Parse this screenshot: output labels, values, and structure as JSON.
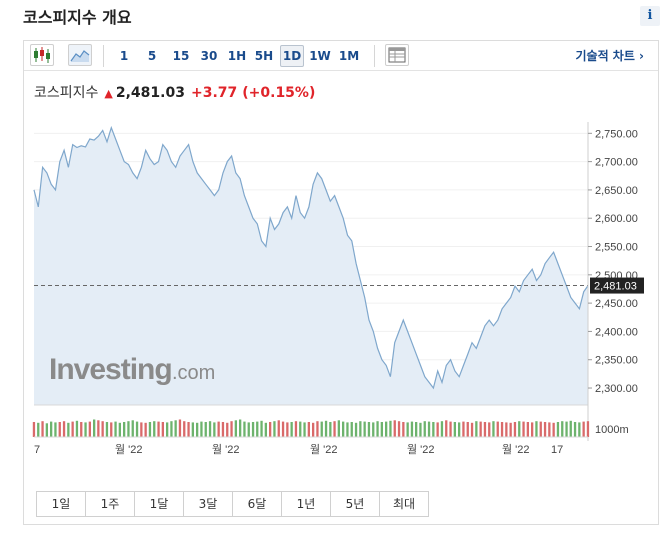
{
  "header": {
    "title": "코스피지수 개요",
    "info_label": "i"
  },
  "toolbar": {
    "icons": [
      "candlestick-chart-icon",
      "area-chart-icon",
      "table-view-icon"
    ],
    "intervals": [
      "1",
      "5",
      "15",
      "30",
      "1H",
      "5H",
      "1D",
      "1W",
      "1M"
    ],
    "active_interval": "1D",
    "technical_chart_label": "기술적 차트 ›"
  },
  "quote": {
    "name": "코스피지수",
    "price": "2,481.03",
    "change": "+3.77",
    "change_pct": "(+0.15%)",
    "up_color": "#e0242a"
  },
  "chart_data": {
    "type": "area",
    "title": "",
    "y_ticks": [
      2300,
      2350,
      2400,
      2450,
      2500,
      2550,
      2600,
      2650,
      2700,
      2750
    ],
    "ylim": [
      2270,
      2770
    ],
    "current_value": 2481.03,
    "current_label": "2,481.03",
    "volume_axis_label": "1000m",
    "x_tick_labels": [
      "7",
      "월 '22",
      "월 '22",
      "월 '22",
      "월 '22",
      "월 '22",
      "17"
    ],
    "series": [
      {
        "values": [
          2650,
          2620,
          2690,
          2680,
          2660,
          2650,
          2700,
          2720,
          2690,
          2730,
          2725,
          2728,
          2726,
          2740,
          2738,
          2745,
          2755,
          2735,
          2760,
          2740,
          2720,
          2700,
          2695,
          2680,
          2670,
          2690,
          2720,
          2705,
          2695,
          2700,
          2730,
          2720,
          2700,
          2690,
          2710,
          2720,
          2730,
          2700,
          2680,
          2670,
          2660,
          2650,
          2640,
          2650,
          2680,
          2700,
          2710,
          2680,
          2670,
          2640,
          2620,
          2600,
          2590,
          2560,
          2550,
          2600,
          2580,
          2590,
          2610,
          2620,
          2600,
          2640,
          2610,
          2600,
          2620,
          2660,
          2680,
          2670,
          2650,
          2630,
          2640,
          2620,
          2600,
          2570,
          2560,
          2520,
          2490,
          2460,
          2420,
          2400,
          2370,
          2350,
          2340,
          2320,
          2380,
          2400,
          2420,
          2400,
          2380,
          2360,
          2340,
          2320,
          2310,
          2300,
          2330,
          2310,
          2340,
          2350,
          2330,
          2320,
          2340,
          2360,
          2380,
          2370,
          2390,
          2410,
          2420,
          2410,
          2420,
          2440,
          2450,
          2460,
          2480,
          2470,
          2490,
          2500,
          2510,
          2490,
          2500,
          2520,
          2530,
          2540,
          2520,
          2500,
          2480,
          2460,
          2450,
          2440,
          2470,
          2481
        ]
      }
    ],
    "volume": [
      36,
      34,
      38,
      33,
      37,
      35,
      36,
      38,
      34,
      37,
      39,
      36,
      35,
      37,
      42,
      40,
      38,
      36,
      35,
      37,
      34,
      36,
      38,
      40,
      37,
      35,
      34,
      36,
      38,
      37,
      36,
      35,
      38,
      40,
      42,
      38,
      36,
      35,
      34,
      37,
      36,
      38,
      35,
      37,
      36,
      34,
      38,
      40,
      42,
      37,
      35,
      36,
      37,
      39,
      34,
      36,
      38,
      40,
      37,
      35,
      36,
      38,
      37,
      35,
      36,
      34,
      38,
      37,
      39,
      36,
      38,
      40,
      37,
      35,
      36,
      34,
      38,
      37,
      36,
      35,
      38,
      36,
      37,
      39,
      40,
      38,
      36,
      35,
      37,
      36,
      34,
      38,
      37,
      36,
      35,
      38,
      40,
      37,
      36,
      35,
      37,
      36,
      34,
      38,
      37,
      36,
      35,
      38,
      37,
      36,
      35,
      34,
      36,
      38,
      37,
      36,
      35,
      38,
      37,
      36,
      35,
      34,
      36,
      38,
      37,
      39,
      36,
      35,
      37,
      38
    ]
  },
  "ranges": [
    "1일",
    "1주",
    "1달",
    "3달",
    "6달",
    "1년",
    "5년",
    "최대"
  ],
  "watermark": {
    "brand": "Investing",
    "suffix": ".com"
  },
  "colors": {
    "line": "#7fa7cc",
    "area": "#e4edf6",
    "volume": "#9ab8d6",
    "text_link": "#1a4b8c"
  }
}
